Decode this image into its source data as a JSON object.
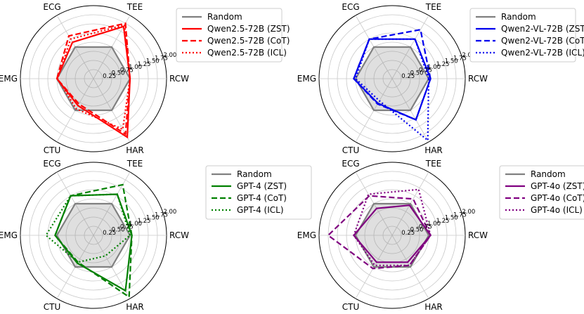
{
  "chart_data": [
    {
      "type": "radar",
      "axes": [
        "RCW",
        "TEE",
        "ECG",
        "EMG",
        "CTU",
        "HAR"
      ],
      "rlim": [
        0,
        2.0
      ],
      "rticks": [
        "0.25",
        "0.50",
        "0.75",
        "1.00",
        "1.25",
        "1.50",
        "1.75",
        "2.00"
      ],
      "accent": "#ff0000",
      "series": [
        {
          "name": "Random",
          "style": "random",
          "color": "#808080",
          "values": [
            1.0,
            1.0,
            1.0,
            1.0,
            1.0,
            1.0
          ]
        },
        {
          "name": "Qwen2.5-72B (ZST)",
          "style": "solid",
          "color": "#ff0000",
          "values": [
            1.0,
            1.65,
            1.15,
            1.0,
            0.85,
            1.85
          ]
        },
        {
          "name": "Qwen2.5-72B (CoT)",
          "style": "dashed",
          "color": "#ff0000",
          "values": [
            1.0,
            1.75,
            1.35,
            1.0,
            0.8,
            1.75
          ]
        },
        {
          "name": "Qwen2.5-72B (ICL)",
          "style": "dotted",
          "color": "#ff0000",
          "values": [
            1.0,
            1.7,
            1.25,
            0.98,
            0.95,
            1.6
          ]
        }
      ]
    },
    {
      "type": "radar",
      "axes": [
        "RCW",
        "TEE",
        "ECG",
        "EMG",
        "CTU",
        "HAR"
      ],
      "rlim": [
        0,
        2.0
      ],
      "rticks": [
        "0.25",
        "0.50",
        "0.75",
        "1.00",
        "1.25",
        "1.50",
        "1.75",
        "2.00"
      ],
      "accent": "#0000ee",
      "series": [
        {
          "name": "Random",
          "style": "random",
          "color": "#808080",
          "values": [
            1.0,
            1.0,
            1.0,
            1.0,
            1.0,
            1.0
          ]
        },
        {
          "name": "Qwen2-VL-72B (ZST)",
          "style": "solid",
          "color": "#0000ee",
          "values": [
            1.05,
            1.25,
            1.25,
            1.05,
            0.78,
            1.3
          ]
        },
        {
          "name": "Qwen2-VL-72B (CoT)",
          "style": "dashed",
          "color": "#0000ee",
          "values": [
            1.05,
            1.55,
            1.25,
            1.05,
            0.8,
            1.3
          ]
        },
        {
          "name": "Qwen2-VL-72B (ICL)",
          "style": "dotted",
          "color": "#0000ee",
          "values": [
            1.0,
            1.25,
            1.25,
            1.0,
            0.7,
            1.95
          ]
        }
      ]
    },
    {
      "type": "radar",
      "axes": [
        "RCW",
        "TEE",
        "ECG",
        "EMG",
        "CTU",
        "HAR"
      ],
      "rlim": [
        0,
        2.0
      ],
      "rticks": [
        "0.25",
        "0.50",
        "0.75",
        "1.00",
        "1.25",
        "1.50",
        "1.75",
        "2.00"
      ],
      "accent": "#008000",
      "series": [
        {
          "name": "Random",
          "style": "random",
          "color": "#808080",
          "values": [
            1.0,
            1.0,
            1.0,
            1.0,
            1.0,
            1.0
          ]
        },
        {
          "name": "GPT-4 (ZST)",
          "style": "solid",
          "color": "#008000",
          "values": [
            1.05,
            1.3,
            1.25,
            1.05,
            0.88,
            1.75
          ]
        },
        {
          "name": "GPT-4 (CoT)",
          "style": "dashed",
          "color": "#008000",
          "values": [
            1.05,
            1.6,
            1.25,
            1.05,
            0.85,
            1.95
          ]
        },
        {
          "name": "GPT-4 (ICL)",
          "style": "dotted",
          "color": "#008000",
          "values": [
            1.0,
            1.3,
            1.25,
            1.3,
            0.85,
            0.65
          ]
        }
      ]
    },
    {
      "type": "radar",
      "axes": [
        "RCW",
        "TEE",
        "ECG",
        "EMG",
        "CTU",
        "HAR"
      ],
      "rlim": [
        0,
        2.0
      ],
      "rticks": [
        "0.25",
        "0.50",
        "0.75",
        "1.00",
        "1.25",
        "1.50",
        "1.75",
        "2.00"
      ],
      "accent": "#800080",
      "series": [
        {
          "name": "Random",
          "style": "random",
          "color": "#808080",
          "values": [
            1.0,
            1.0,
            1.0,
            1.0,
            1.0,
            1.0
          ]
        },
        {
          "name": "GPT-4o (ZST)",
          "style": "solid",
          "color": "#800080",
          "values": [
            1.05,
            0.95,
            0.85,
            1.05,
            0.85,
            0.85
          ]
        },
        {
          "name": "GPT-4o (CoT)",
          "style": "dashed",
          "color": "#800080",
          "values": [
            1.05,
            1.15,
            1.25,
            1.75,
            1.05,
            0.95
          ]
        },
        {
          "name": "GPT-4o (ICL)",
          "style": "dotted",
          "color": "#800080",
          "values": [
            1.05,
            1.45,
            1.3,
            1.05,
            0.95,
            0.95
          ]
        }
      ]
    }
  ]
}
